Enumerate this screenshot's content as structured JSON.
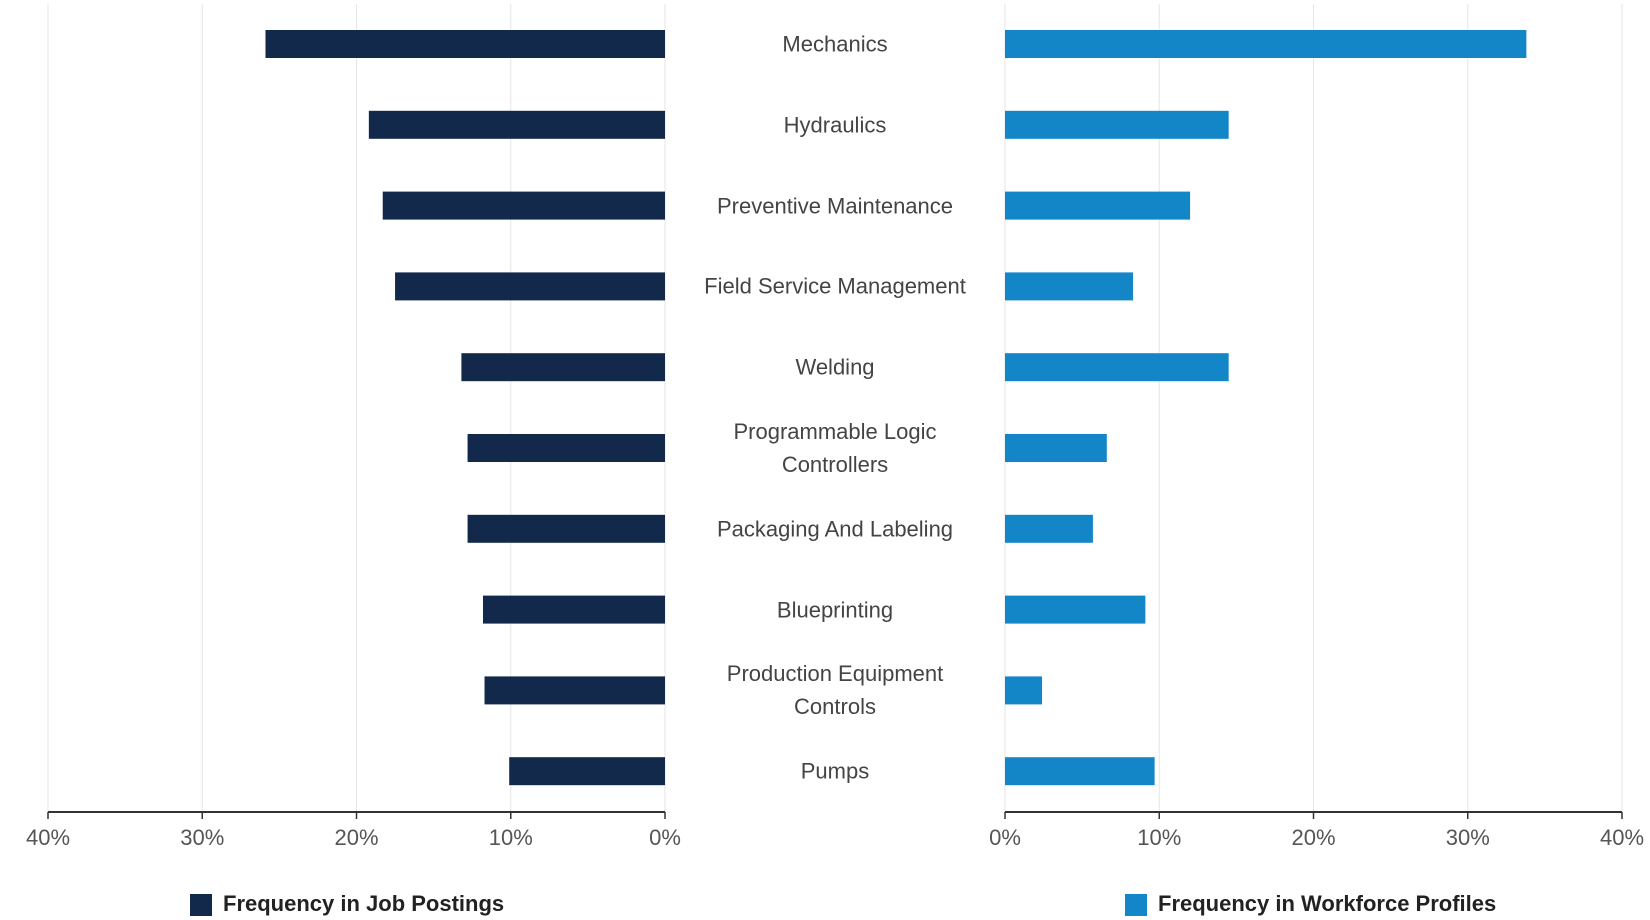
{
  "chart_data": {
    "type": "butterfly",
    "categories": [
      "Mechanics",
      "Hydraulics",
      "Preventive Maintenance",
      "Field Service Management",
      "Welding",
      "Programmable Logic Controllers",
      "Packaging And Labeling",
      "Blueprinting",
      "Production Equipment Controls",
      "Pumps"
    ],
    "series": [
      {
        "name": "Frequency in Job Postings",
        "color": "#13294b",
        "values": [
          25.9,
          19.2,
          18.3,
          17.5,
          13.2,
          12.8,
          12.8,
          11.8,
          11.7,
          10.1
        ]
      },
      {
        "name": "Frequency in Workforce Profiles",
        "color": "#1386c8",
        "values": [
          33.8,
          14.5,
          12.0,
          8.3,
          14.5,
          6.6,
          5.7,
          9.1,
          2.4,
          9.7
        ]
      }
    ],
    "xlim": [
      0,
      40
    ],
    "xticks": [
      {
        "value": 0,
        "label": "0%"
      },
      {
        "value": 10,
        "label": "10%"
      },
      {
        "value": 20,
        "label": "20%"
      },
      {
        "value": 30,
        "label": "30%"
      },
      {
        "value": 40,
        "label": "40%"
      }
    ],
    "grid": true
  }
}
